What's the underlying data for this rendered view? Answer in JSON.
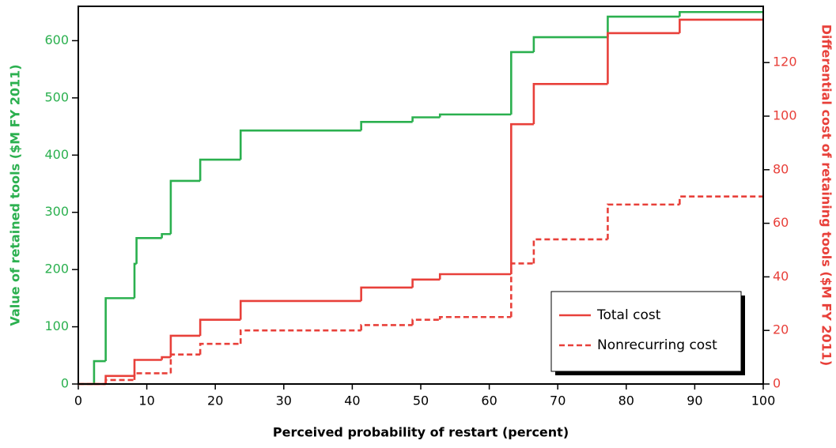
{
  "chart_data": {
    "type": "step",
    "x_label": "Perceived probability of restart (percent)",
    "y_label": "Value of retained tools ($M FY 2011)",
    "y2_label": "Differential cost of retaining tools ($M FY 2011)",
    "x": [
      0,
      2.3,
      4,
      8.2,
      8.5,
      12.2,
      13.5,
      17.8,
      23.7,
      41.3,
      48.8,
      52.8,
      63.2,
      66.5,
      77.3,
      87.8,
      100
    ],
    "series": [
      {
        "name": "Value of retained tools",
        "color": "#2bb04f",
        "axis": "y",
        "dash": false,
        "values": [
          0,
          40,
          150,
          210,
          255,
          262,
          355,
          392,
          443,
          458,
          466,
          471,
          580,
          606,
          642,
          650,
          650
        ]
      },
      {
        "name": "Total cost",
        "color": "#e8403a",
        "axis": "y2",
        "dash": false,
        "values": [
          0,
          0,
          3,
          9,
          9,
          10,
          18,
          24,
          31,
          36,
          39,
          41,
          97,
          112,
          131,
          136,
          136
        ]
      },
      {
        "name": "Nonrecurring cost",
        "color": "#e8403a",
        "axis": "y2",
        "dash": true,
        "values": [
          0,
          0,
          1.5,
          4,
          4,
          4,
          11,
          15,
          20,
          22,
          24,
          25,
          45,
          54,
          67,
          70,
          70
        ]
      }
    ],
    "legend_series": [
      1,
      2
    ],
    "legend_position": "lower right",
    "xlim": [
      0,
      100
    ],
    "xticks": [
      0,
      10,
      20,
      30,
      40,
      50,
      60,
      70,
      80,
      90,
      100
    ],
    "ylim": [
      0,
      660
    ],
    "yticks": [
      0,
      100,
      200,
      300,
      400,
      500,
      600
    ],
    "y_color": "#2bb04f",
    "y2lim": [
      0,
      141
    ],
    "y2ticks": [
      0,
      20,
      40,
      60,
      80,
      100,
      120
    ],
    "y2_color": "#e8403a"
  }
}
